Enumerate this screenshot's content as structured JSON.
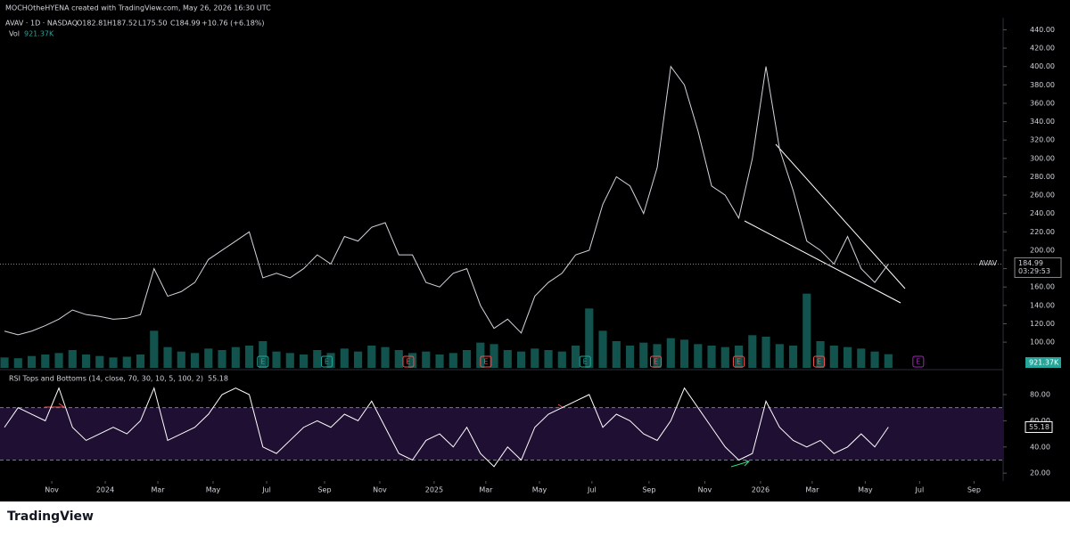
{
  "header": {
    "credit": "MOCHOtheHYENA created with TradingView.com, May 26, 2026 16:30 UTC",
    "logo": "TradingView"
  },
  "chart_data": [
    {
      "type": "line",
      "title": "AVAV · 1D · NASDAQ",
      "ohlc": {
        "open": "O182.81",
        "high": "H187.52",
        "low": "L175.50",
        "close": "C184.99",
        "change": "+10.76 (+6.18%)"
      },
      "symbol": "AVAV",
      "countdown": "03:29:53",
      "color": "#d1d4dc",
      "x": [
        0,
        1,
        2,
        3,
        4,
        5,
        6,
        7,
        8,
        9,
        10,
        11,
        12,
        13,
        14,
        15,
        16,
        17,
        18,
        19,
        20,
        21,
        22,
        23,
        24,
        25,
        26,
        27,
        28,
        29,
        30,
        31,
        32,
        33,
        34,
        35,
        36,
        37,
        38,
        39,
        40,
        41,
        42,
        43,
        44,
        45,
        46,
        47,
        48,
        49,
        50,
        51,
        52,
        53,
        54,
        55,
        56,
        57,
        58,
        59,
        60,
        61,
        62,
        63,
        64,
        65
      ],
      "values": [
        112,
        108,
        112,
        118,
        125,
        135,
        130,
        128,
        125,
        126,
        130,
        180,
        150,
        155,
        165,
        190,
        200,
        210,
        220,
        170,
        175,
        170,
        180,
        195,
        185,
        215,
        210,
        225,
        230,
        195,
        195,
        165,
        160,
        175,
        180,
        140,
        115,
        125,
        110,
        150,
        165,
        175,
        195,
        200,
        250,
        280,
        270,
        240,
        290,
        400,
        380,
        330,
        270,
        260,
        235,
        300,
        400,
        310,
        265,
        210,
        200,
        185,
        215,
        180,
        165,
        184.99
      ],
      "volume": {
        "name": "Vol",
        "color": "#26a69a",
        "vlim": [
          0,
          6000
        ],
        "value_labels_last": "921.37K",
        "values": [
          700,
          650,
          800,
          900,
          1000,
          1200,
          900,
          800,
          700,
          750,
          900,
          2500,
          1400,
          1100,
          1000,
          1300,
          1200,
          1400,
          1500,
          1800,
          1100,
          1000,
          900,
          1200,
          1000,
          1300,
          1100,
          1500,
          1400,
          1200,
          1000,
          1100,
          900,
          1000,
          1200,
          1700,
          1600,
          1200,
          1100,
          1300,
          1200,
          1100,
          1500,
          4000,
          2500,
          1800,
          1500,
          1700,
          1600,
          2000,
          1900,
          1600,
          1500,
          1400,
          1500,
          2200,
          2100,
          1600,
          1500,
          5000,
          1800,
          1500,
          1400,
          1300,
          1100,
          921.37
        ]
      },
      "events": [
        {
          "x": 19.0,
          "label": "E",
          "color": "#26a69a"
        },
        {
          "x": 23.7,
          "label": "E",
          "color": "#26a69a"
        },
        {
          "x": 29.7,
          "label": "E",
          "color": "#ef5350"
        },
        {
          "x": 35.4,
          "label": "E",
          "color": "#ef5350"
        },
        {
          "x": 42.7,
          "label": "E",
          "color": "#26a69a"
        },
        {
          "x": 47.9,
          "label": "E",
          "color": "#ef5350"
        },
        {
          "x": 54.0,
          "label": "E",
          "color": "#ef5350"
        },
        {
          "x": 59.9,
          "label": "E",
          "color": "#ef5350"
        },
        {
          "x": 67.2,
          "label": "E",
          "color": "#9c27b0"
        }
      ],
      "xlim": [
        -0.33,
        73.44
      ],
      "ylim": [
        72,
        453
      ],
      "yticks": [
        {
          "value": 100,
          "label": "100.00"
        },
        {
          "value": 120,
          "label": "120.00"
        },
        {
          "value": 140,
          "label": "140.00"
        },
        {
          "value": 160,
          "label": "160.00"
        },
        {
          "value": 180,
          "label": "180.00"
        },
        {
          "value": 200,
          "label": "200.00"
        },
        {
          "value": 220,
          "label": "220.00"
        },
        {
          "value": 240,
          "label": "240.00"
        },
        {
          "value": 260,
          "label": "260.00"
        },
        {
          "value": 280,
          "label": "280.00"
        },
        {
          "value": 300,
          "label": "300.00"
        },
        {
          "value": 320,
          "label": "320.00"
        },
        {
          "value": 340,
          "label": "340.00"
        },
        {
          "value": 360,
          "label": "360.00"
        },
        {
          "value": 380,
          "label": "380.00"
        },
        {
          "value": 400,
          "label": "400.00"
        },
        {
          "value": 420,
          "label": "420.00"
        },
        {
          "value": 440,
          "label": "440.00"
        }
      ]
    },
    {
      "type": "line",
      "title": "RSI Tops and Bottoms (14, close, 70, 30, 10, 5, 100, 2)",
      "color": "#ffffff",
      "levels": [
        70,
        30
      ],
      "values": [
        55,
        70,
        65,
        60,
        85,
        55,
        45,
        50,
        55,
        50,
        60,
        85,
        45,
        50,
        55,
        65,
        80,
        85,
        80,
        40,
        35,
        45,
        55,
        60,
        55,
        65,
        60,
        75,
        55,
        35,
        30,
        45,
        50,
        40,
        55,
        35,
        25,
        40,
        30,
        55,
        65,
        70,
        75,
        80,
        55,
        65,
        60,
        50,
        45,
        60,
        85,
        70,
        55,
        40,
        30,
        35,
        75,
        55,
        45,
        40,
        45,
        35,
        40,
        50,
        40,
        55.18
      ],
      "ylim": [
        14,
        97
      ],
      "yticks": [
        {
          "value": 20,
          "label": "20.00"
        },
        {
          "value": 40,
          "label": "40.00"
        },
        {
          "value": 60,
          "label": "60.00"
        },
        {
          "value": 80,
          "label": "80.00"
        }
      ],
      "xticks": [
        {
          "value": 3.48,
          "label": "Nov"
        },
        {
          "value": 7.41,
          "label": "2024"
        },
        {
          "value": 11.28,
          "label": "Mar"
        },
        {
          "value": 15.34,
          "label": "May"
        },
        {
          "value": 19.28,
          "label": "Jul"
        },
        {
          "value": 23.54,
          "label": "Sep"
        },
        {
          "value": 27.6,
          "label": "Nov"
        },
        {
          "value": 31.6,
          "label": "2025"
        },
        {
          "value": 35.4,
          "label": "Mar"
        },
        {
          "value": 39.34,
          "label": "May"
        },
        {
          "value": 43.2,
          "label": "Jul"
        },
        {
          "value": 47.4,
          "label": "Sep"
        },
        {
          "value": 51.5,
          "label": "Nov"
        },
        {
          "value": 55.6,
          "label": "2026"
        },
        {
          "value": 59.4,
          "label": "Mar"
        },
        {
          "value": 63.3,
          "label": "May"
        },
        {
          "value": 67.3,
          "label": "Jul"
        },
        {
          "value": 71.3,
          "label": "Sep"
        }
      ]
    }
  ]
}
